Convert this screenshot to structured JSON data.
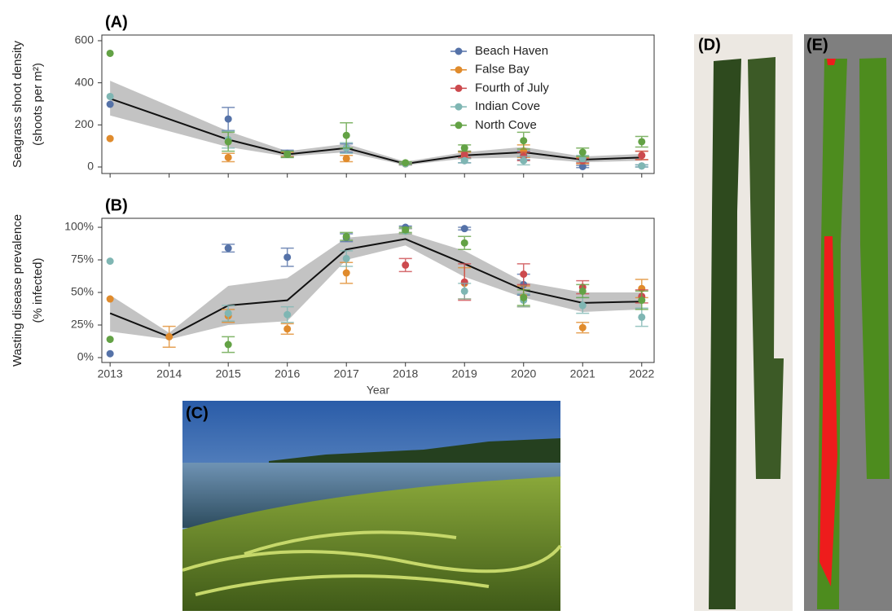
{
  "chart_data": [
    {
      "type": "scatter",
      "title": "(A)",
      "ylabel": [
        "Seagrass shoot density",
        "(shoots per m²)"
      ],
      "x": [
        2013,
        2014,
        2015,
        2016,
        2017,
        2018,
        2019,
        2020,
        2021,
        2022
      ],
      "xlim": [
        2012.86,
        2022.21
      ],
      "ylim": [
        -31,
        627
      ],
      "xticks": [
        2013,
        2014,
        2015,
        2016,
        2017,
        2018,
        2019,
        2020,
        2021,
        2022
      ],
      "xtick_labels": false,
      "yticks": [
        0,
        200,
        400,
        600
      ],
      "legend": "top-right",
      "series": [
        {
          "name": "Beach Haven",
          "color": "#5572a8",
          "values": [
            298,
            null,
            228,
            65,
            90,
            15,
            30,
            55,
            2,
            5
          ],
          "errors": [
            null,
            null,
            55,
            15,
            20,
            5,
            10,
            20,
            5,
            5
          ]
        },
        {
          "name": "False Bay",
          "color": "#e08b2c",
          "values": [
            135,
            null,
            45,
            60,
            40,
            15,
            55,
            75,
            30,
            55
          ],
          "errors": [
            null,
            null,
            20,
            10,
            15,
            5,
            15,
            30,
            15,
            20
          ]
        },
        {
          "name": "Fourth of July",
          "color": "#cc4a4e",
          "values": [
            null,
            null,
            null,
            null,
            null,
            15,
            60,
            50,
            30,
            55
          ],
          "errors": [
            null,
            null,
            null,
            null,
            null,
            5,
            15,
            20,
            10,
            20
          ]
        },
        {
          "name": "Indian Cove",
          "color": "#7fb6b3",
          "values": [
            335,
            null,
            130,
            60,
            90,
            15,
            30,
            30,
            40,
            5
          ],
          "errors": [
            null,
            null,
            40,
            15,
            25,
            5,
            10,
            20,
            15,
            5
          ]
        },
        {
          "name": "North Cove",
          "color": "#63a245",
          "values": [
            540,
            null,
            120,
            60,
            150,
            20,
            90,
            125,
            70,
            120
          ],
          "errors": [
            null,
            null,
            45,
            15,
            60,
            5,
            15,
            40,
            20,
            25
          ]
        }
      ],
      "mean": {
        "x": [
          2013,
          2015,
          2016,
          2017,
          2018,
          2019,
          2020,
          2021,
          2022
        ],
        "values": [
          325,
          130,
          60,
          90,
          15,
          55,
          70,
          35,
          45
        ],
        "lower": [
          245,
          95,
          50,
          70,
          8,
          40,
          45,
          22,
          30
        ],
        "upper": [
          410,
          170,
          75,
          110,
          25,
          70,
          95,
          50,
          62
        ]
      }
    },
    {
      "type": "scatter",
      "title": "(B)",
      "xlabel": "Year",
      "ylabel": [
        "Wasting disease prevalence",
        "(% infected)"
      ],
      "x": [
        2013,
        2014,
        2015,
        2016,
        2017,
        2018,
        2019,
        2020,
        2021,
        2022
      ],
      "xlim": [
        2012.86,
        2022.21
      ],
      "ylim": [
        -3.75,
        106.9
      ],
      "xticks": [
        2013,
        2014,
        2015,
        2016,
        2017,
        2018,
        2019,
        2020,
        2021,
        2022
      ],
      "xtick_labels": true,
      "yticks": [
        {
          "value": 0,
          "label": "0%"
        },
        {
          "value": 25,
          "label": "25%"
        },
        {
          "value": 50,
          "label": "50%"
        },
        {
          "value": 75,
          "label": "75%"
        },
        {
          "value": 100,
          "label": "100%"
        }
      ],
      "series": [
        {
          "name": "Beach Haven",
          "color": "#5572a8",
          "values": [
            3,
            null,
            84,
            77,
            92,
            100,
            99,
            56,
            null,
            null
          ],
          "errors": [
            null,
            null,
            3,
            7,
            3,
            1,
            1,
            8,
            null,
            null
          ]
        },
        {
          "name": "False Bay",
          "color": "#e08b2c",
          "values": [
            45,
            16,
            32,
            22,
            65,
            97,
            57,
            47,
            23,
            53
          ],
          "errors": [
            null,
            8,
            5,
            4,
            8,
            2,
            12,
            8,
            4,
            7
          ]
        },
        {
          "name": "Fourth of July",
          "color": "#cc4a4e",
          "values": [
            null,
            null,
            null,
            null,
            null,
            71,
            58,
            64,
            54,
            47
          ],
          "errors": [
            null,
            null,
            null,
            null,
            null,
            5,
            14,
            8,
            5,
            5
          ]
        },
        {
          "name": "Indian Cove",
          "color": "#7fb6b3",
          "values": [
            74,
            null,
            34,
            33,
            76,
            97,
            51,
            44,
            40,
            31
          ],
          "errors": [
            null,
            null,
            6,
            6,
            6,
            2,
            6,
            5,
            6,
            7
          ]
        },
        {
          "name": "North Cove",
          "color": "#63a245",
          "values": [
            14,
            null,
            10,
            null,
            93,
            98,
            88,
            46,
            51,
            44
          ],
          "errors": [
            null,
            null,
            6,
            null,
            3,
            2,
            5,
            6,
            5,
            7
          ]
        }
      ],
      "mean": {
        "x": [
          2013,
          2014,
          2015,
          2016,
          2017,
          2018,
          2019,
          2020,
          2021,
          2022
        ],
        "values": [
          34,
          16,
          40,
          44,
          83,
          91,
          72,
          52,
          42,
          43
        ],
        "lower": [
          20,
          14,
          25,
          28,
          75,
          86,
          62,
          46,
          35,
          37
        ],
        "upper": [
          48,
          19,
          55,
          61,
          92,
          96,
          82,
          58,
          50,
          50
        ]
      }
    }
  ],
  "photo_panels": [
    "(C)",
    "(D)",
    "(E)"
  ]
}
